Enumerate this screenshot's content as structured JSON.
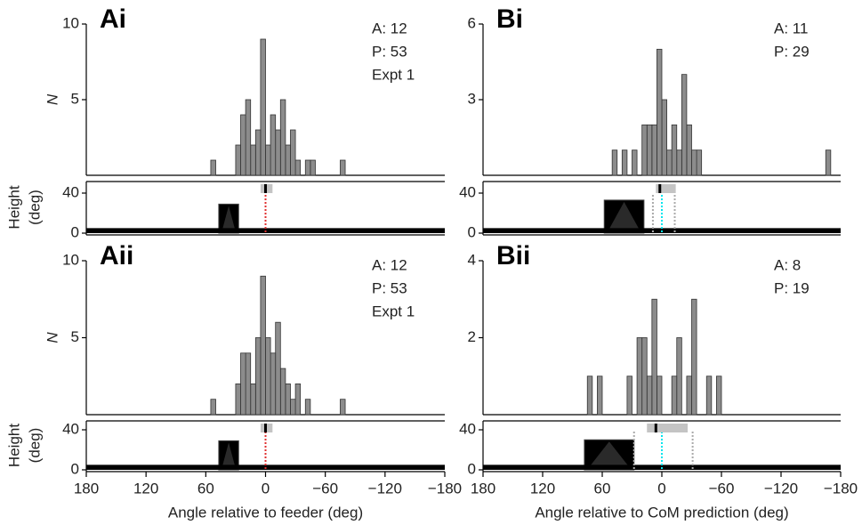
{
  "chart_data": [
    {
      "type": "histogram",
      "label": "Ai",
      "annotations": [
        "A: 12",
        "P: 53",
        "Expt 1"
      ],
      "ylabel": "N",
      "color": "#8c8c8c",
      "bins": [
        -80,
        -75,
        -70,
        -65,
        -60,
        -55,
        -50,
        -45,
        -40,
        -35,
        -30,
        -25,
        -20,
        -15,
        -10,
        -5,
        0,
        5,
        10,
        15,
        20,
        25,
        30,
        35,
        40,
        45,
        50,
        55,
        60
      ],
      "counts": [
        1,
        0,
        0,
        0,
        0,
        0,
        1,
        1,
        0,
        1,
        3,
        2,
        5,
        3,
        4,
        2,
        9,
        3,
        2,
        5,
        4,
        2,
        0,
        0,
        0,
        0,
        1,
        0
      ],
      "xlim": [
        180,
        -180
      ],
      "ylim": [
        0,
        10
      ],
      "yticks": [
        5,
        10
      ],
      "strip": {
        "ylabel": [
          "Height",
          "(deg)"
        ],
        "ylim": [
          0,
          40
        ],
        "yticks": [
          0,
          40
        ],
        "ground": 5,
        "landmark": {
          "x": [
            47,
            27
          ],
          "height": 29
        },
        "summary": {
          "range": [
            5,
            -7
          ],
          "mean": 0
        },
        "lines": [
          {
            "x": 0,
            "color": "#e03030"
          }
        ]
      }
    },
    {
      "type": "histogram",
      "label": "Bi",
      "annotations": [
        "A: 11",
        "P: 29"
      ],
      "color": "#8c8c8c",
      "bins": [
        -170,
        -165,
        -160,
        -155,
        -150,
        -145,
        -140,
        -135,
        -130,
        -125,
        -120,
        -115,
        -110,
        -105,
        -100,
        -95,
        -90,
        -85,
        -80,
        -75,
        -70,
        -65,
        -60,
        -55,
        -50,
        -45,
        -40,
        -35,
        -30,
        -25,
        -20,
        -15,
        -10,
        -5,
        0,
        5,
        10,
        15,
        20,
        25,
        30,
        35,
        40,
        45,
        50
      ],
      "counts": [
        1,
        0,
        0,
        0,
        0,
        0,
        0,
        0,
        0,
        0,
        0,
        0,
        0,
        0,
        0,
        0,
        0,
        0,
        0,
        0,
        0,
        0,
        0,
        0,
        0,
        0,
        1,
        1,
        2,
        4,
        1,
        2,
        1,
        3,
        5,
        2,
        2,
        2,
        0,
        1,
        0,
        1,
        0,
        1
      ],
      "xlim": [
        180,
        -180
      ],
      "ylim": [
        0,
        6
      ],
      "yticks": [
        3,
        6
      ],
      "strip": {
        "ylim": [
          0,
          40
        ],
        "yticks": [
          0,
          40
        ],
        "ground": 5,
        "landmark": {
          "x": [
            58,
            18
          ],
          "height": 33
        },
        "summary": {
          "range": [
            6,
            -14
          ],
          "mean": 2
        },
        "lines": [
          {
            "x": 9,
            "color": "#aaaaaa"
          },
          {
            "x": -13,
            "color": "#aaaaaa"
          },
          {
            "x": 0,
            "color": "#00e5ee"
          }
        ]
      }
    },
    {
      "type": "histogram",
      "label": "Aii",
      "annotations": [
        "A: 12",
        "P: 53",
        "Expt 1"
      ],
      "ylabel": "N",
      "color": "#8c8c8c",
      "bins": [
        -80,
        -75,
        -70,
        -65,
        -60,
        -55,
        -50,
        -45,
        -40,
        -35,
        -30,
        -25,
        -20,
        -15,
        -10,
        -5,
        0,
        5,
        10,
        15,
        20,
        25,
        30,
        35,
        40,
        45,
        50,
        55,
        60
      ],
      "counts": [
        1,
        0,
        0,
        0,
        0,
        0,
        0,
        1,
        0,
        2,
        1,
        2,
        3,
        6,
        4,
        5,
        9,
        5,
        2,
        4,
        4,
        2,
        0,
        0,
        0,
        0,
        1,
        0
      ],
      "xlim": [
        180,
        -180
      ],
      "ylim": [
        0,
        10
      ],
      "yticks": [
        5,
        10
      ],
      "xticks": [
        180,
        120,
        60,
        0,
        {
          "value": -60,
          "label": "−60"
        },
        {
          "value": -120,
          "label": "−120"
        },
        {
          "value": -180,
          "label": "−180"
        }
      ],
      "xlabel": "Angle relative to feeder (deg)",
      "strip": {
        "ylabel": [
          "Height",
          "(deg)"
        ],
        "ylim": [
          0,
          40
        ],
        "yticks": [
          0,
          40
        ],
        "ground": 5,
        "landmark": {
          "x": [
            47,
            27
          ],
          "height": 29
        },
        "summary": {
          "range": [
            5,
            -7
          ],
          "mean": 0
        },
        "lines": [
          {
            "x": 0,
            "color": "#e03030"
          }
        ]
      }
    },
    {
      "type": "histogram",
      "label": "Bii",
      "annotations": [
        "A: 8",
        "P: 19"
      ],
      "color": "#8c8c8c",
      "bins": [
        -60,
        -55,
        -50,
        -45,
        -40,
        -35,
        -30,
        -25,
        -20,
        -15,
        -10,
        -5,
        0,
        5,
        10,
        15,
        20,
        25,
        30,
        35,
        40,
        45,
        50,
        55,
        60,
        65,
        70,
        75
      ],
      "counts": [
        1,
        0,
        1,
        0,
        0,
        3,
        1,
        0,
        2,
        1,
        0,
        0,
        1,
        3,
        1,
        2,
        2,
        0,
        1,
        0,
        0,
        0,
        0,
        0,
        1,
        0,
        1
      ],
      "xlim": [
        180,
        -180
      ],
      "ylim": [
        0,
        4
      ],
      "yticks": [
        2,
        4
      ],
      "xticks": [
        180,
        120,
        60,
        0,
        {
          "value": -60,
          "label": "−60"
        },
        {
          "value": -120,
          "label": "−120"
        },
        {
          "value": -180,
          "label": "−180"
        }
      ],
      "xlabel": "Angle relative to CoM prediction (deg)",
      "strip": {
        "ylim": [
          0,
          40
        ],
        "yticks": [
          0,
          40
        ],
        "ground": 5,
        "landmark": {
          "x": [
            78,
            28
          ],
          "height": 30
        },
        "summary": {
          "range": [
            15,
            -26
          ],
          "mean": 6
        },
        "lines": [
          {
            "x": 28,
            "color": "#aaaaaa"
          },
          {
            "x": -31,
            "color": "#aaaaaa"
          },
          {
            "x": 0,
            "color": "#00e5ee"
          }
        ]
      }
    }
  ]
}
